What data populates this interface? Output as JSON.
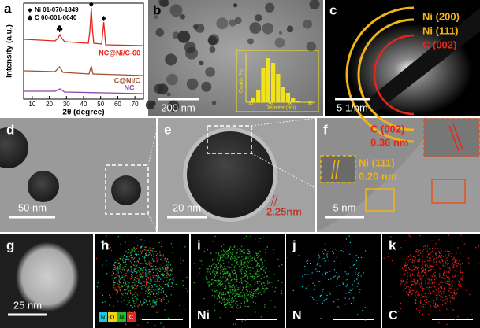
{
  "a": {
    "label": "a",
    "legend": [
      "Ni 01-070-1849",
      "C 00-001-0640"
    ],
    "curves": [
      "NC@Ni/C-60",
      "C@Ni/C",
      "NC"
    ],
    "y_label": "Intensity (a.u.)",
    "x_label": "2θ (degree)",
    "xlim": [
      5,
      75
    ],
    "xticks": [
      10,
      20,
      30,
      40,
      50,
      60,
      70
    ]
  },
  "b": {
    "label": "b",
    "scale": "200 nm",
    "inset": {
      "y_label": "Counts (%)",
      "x_label": "Diameter (nm)",
      "xlim": [
        15,
        85
      ],
      "ylim": [
        0,
        30
      ],
      "xticks": [
        20,
        40,
        60,
        80
      ],
      "bins": [
        20,
        25,
        30,
        35,
        40,
        45,
        50,
        55,
        60,
        65,
        70
      ],
      "counts": [
        3,
        8,
        22,
        28,
        25,
        18,
        10,
        6,
        3,
        1
      ]
    }
  },
  "c": {
    "label": "c",
    "scale": "5 1/nm",
    "rings": [
      "Ni (200)",
      "Ni (111)",
      "C (002)"
    ]
  },
  "d": {
    "label": "d",
    "scale": "50 nm"
  },
  "e": {
    "label": "e",
    "scale": "20 nm",
    "annotation": "2.25nm"
  },
  "f": {
    "label": "f",
    "scale": "5 nm",
    "c_plane": "C (002)",
    "c_spacing": "0.36 nm",
    "ni_plane": "Ni (111)",
    "ni_spacing": "0.20 nm"
  },
  "g": {
    "label": "g",
    "scale": "25 nm"
  },
  "h": {
    "label": "h",
    "legend": [
      "N",
      "O",
      "Ni",
      "C"
    ]
  },
  "i": {
    "label": "i",
    "element": "Ni"
  },
  "j": {
    "label": "j",
    "element": "N"
  },
  "k": {
    "label": "k",
    "element": "C"
  }
}
